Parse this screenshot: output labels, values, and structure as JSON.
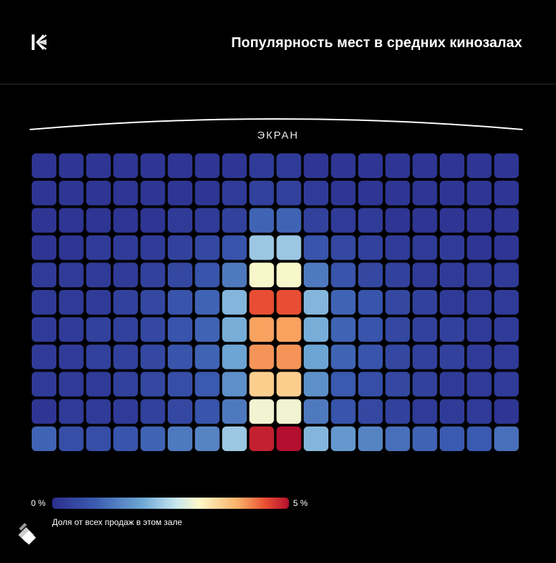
{
  "header": {
    "title": "Популярность мест в средних кинозалах",
    "logo_icon": "kion-logo-icon"
  },
  "chart_data": {
    "type": "heatmap",
    "screen_label": "ЭКРАН",
    "rows": 11,
    "cols": 18,
    "value_unit": "%",
    "color_scale": {
      "min_label": "0 %",
      "max_label": "5 %",
      "min": 0,
      "max": 5,
      "colors": [
        "#2c2f8e",
        "#3a5bb0",
        "#6ea7d4",
        "#c4e4ef",
        "#fdf8c8",
        "#fbb46a",
        "#e94f33",
        "#b30f2e"
      ]
    },
    "values": [
      [
        0.1,
        0.1,
        0.1,
        0.1,
        0.1,
        0.1,
        0.1,
        0.1,
        0.2,
        0.2,
        0.1,
        0.1,
        0.1,
        0.1,
        0.1,
        0.1,
        0.1,
        0.1
      ],
      [
        0.1,
        0.1,
        0.1,
        0.1,
        0.1,
        0.1,
        0.1,
        0.2,
        0.3,
        0.3,
        0.2,
        0.1,
        0.1,
        0.1,
        0.1,
        0.1,
        0.1,
        0.1
      ],
      [
        0.1,
        0.1,
        0.1,
        0.1,
        0.1,
        0.2,
        0.2,
        0.3,
        0.8,
        0.8,
        0.3,
        0.2,
        0.2,
        0.1,
        0.1,
        0.1,
        0.1,
        0.1
      ],
      [
        0.1,
        0.1,
        0.2,
        0.2,
        0.2,
        0.3,
        0.4,
        0.6,
        1.8,
        1.8,
        0.6,
        0.4,
        0.3,
        0.2,
        0.2,
        0.2,
        0.1,
        0.1
      ],
      [
        0.2,
        0.2,
        0.2,
        0.2,
        0.3,
        0.4,
        0.6,
        1.0,
        2.8,
        2.8,
        1.0,
        0.6,
        0.4,
        0.3,
        0.2,
        0.2,
        0.2,
        0.2
      ],
      [
        0.2,
        0.2,
        0.2,
        0.3,
        0.4,
        0.6,
        0.8,
        1.6,
        4.3,
        4.3,
        1.6,
        0.8,
        0.6,
        0.4,
        0.3,
        0.2,
        0.2,
        0.2
      ],
      [
        0.2,
        0.2,
        0.3,
        0.3,
        0.4,
        0.6,
        0.8,
        1.5,
        3.7,
        3.7,
        1.5,
        0.8,
        0.6,
        0.4,
        0.3,
        0.3,
        0.2,
        0.2
      ],
      [
        0.2,
        0.2,
        0.3,
        0.3,
        0.4,
        0.6,
        0.8,
        1.4,
        3.8,
        3.8,
        1.4,
        0.8,
        0.6,
        0.4,
        0.3,
        0.3,
        0.2,
        0.2
      ],
      [
        0.2,
        0.2,
        0.2,
        0.3,
        0.4,
        0.5,
        0.7,
        1.2,
        3.3,
        3.3,
        1.2,
        0.7,
        0.5,
        0.4,
        0.3,
        0.2,
        0.2,
        0.2
      ],
      [
        0.1,
        0.2,
        0.2,
        0.2,
        0.3,
        0.4,
        0.6,
        1.0,
        2.7,
        2.7,
        1.0,
        0.6,
        0.4,
        0.3,
        0.2,
        0.2,
        0.2,
        0.1
      ],
      [
        0.8,
        0.5,
        0.5,
        0.6,
        0.8,
        1.0,
        1.1,
        1.8,
        4.8,
        5.0,
        1.6,
        1.3,
        1.1,
        0.9,
        0.8,
        0.7,
        0.7,
        0.9
      ]
    ]
  },
  "legend": {
    "caption": "Доля от всех продаж в этом зале",
    "min_label": "0 %",
    "max_label": "5 %"
  },
  "footer": {
    "brand_icon": "brand-diamond-icon"
  }
}
